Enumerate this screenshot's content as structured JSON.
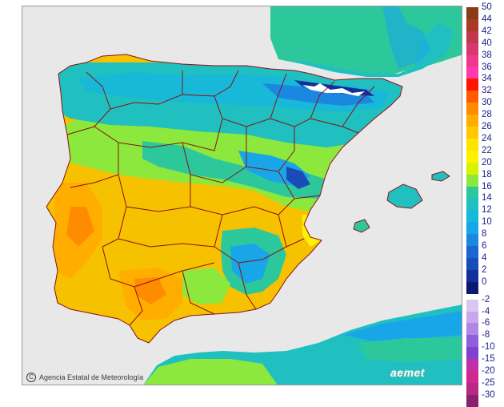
{
  "credit": {
    "text": "Agencia Estatal de Meteorología"
  },
  "brand": {
    "text": "aemet"
  },
  "legend": {
    "labels": [
      "50",
      "44",
      "42",
      "40",
      "38",
      "36",
      "34",
      "32",
      "30",
      "28",
      "26",
      "24",
      "22",
      "20",
      "18",
      "16",
      "14",
      "12",
      "10",
      "8",
      "6",
      "4",
      "2",
      "0",
      "-2",
      "-4",
      "-6",
      "-8",
      "-10",
      "-15",
      "-20",
      "-25",
      "-30"
    ],
    "colors": [
      "#8a3b14",
      "#a83a2a",
      "#c0384a",
      "#d8386e",
      "#f0388f",
      "#ff3aaa",
      "#ff1400",
      "#ff5a00",
      "#ff8c00",
      "#ffae00",
      "#ffc800",
      "#ffe400",
      "#fff200",
      "#d8f200",
      "#8ce83c",
      "#2cc89c",
      "#20c0c0",
      "#18b8d8",
      "#18a6e8",
      "#1a88e0",
      "#1a66d2",
      "#1a4cb8",
      "#12309a",
      "#0a1a6e",
      "#d8c8f0",
      "#c8a8ec",
      "#b088e4",
      "#9060dc",
      "#8040d0",
      "#c030a8",
      "#d02890",
      "#b82880",
      "#8a2070"
    ]
  },
  "colors": {
    "sea": "#e8e8e8",
    "border": "#8b1010",
    "land_warm": "#f6c200",
    "land_cool": "#20c8c8"
  }
}
